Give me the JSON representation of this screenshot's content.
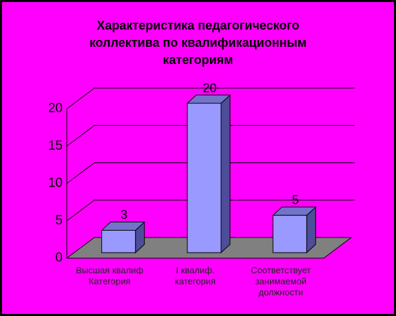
{
  "chart_data": {
    "type": "bar3d",
    "title": "Характеристика педагогического\nколлектива по квалификационным\nкатегориям",
    "categories": [
      "Высшая квалиф\nКатегория",
      "I квалиф.\nкатегория",
      "Соответствует\nзанимаемой\nдолжности"
    ],
    "values": [
      3,
      20,
      5
    ],
    "color": "#9999ff",
    "ylim": [
      0,
      20
    ],
    "yticks": [
      0,
      5,
      10,
      15,
      20
    ],
    "grid": true
  }
}
